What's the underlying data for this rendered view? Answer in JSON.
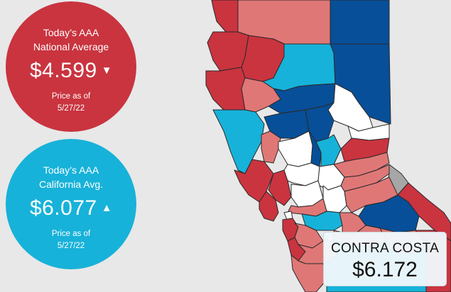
{
  "national": {
    "label_line1": "Today’s AAA",
    "label_line2": "National Average",
    "price": "$4.599",
    "trend": "down",
    "trend_icon": "▼",
    "asof_line1": "Price as of",
    "asof_line2": "5/27/22",
    "color": "#c9343f"
  },
  "california": {
    "label_line1": "Today’s AAA",
    "label_line2": "California Avg.",
    "price": "$6.077",
    "trend": "up",
    "trend_icon": "▲",
    "asof_line1": "Price as of",
    "asof_line2": "5/27/22",
    "color": "#17b2d9"
  },
  "tooltip": {
    "county": "CONTRA COSTA",
    "price": "$6.172"
  },
  "map_colors": {
    "dark_red": "#c9343f",
    "light_red": "#e07777",
    "dark_blue": "#074f98",
    "light_blue": "#17b2d9",
    "white": "#ffffff",
    "gray": "#a6a6a6",
    "background": "#e8e8e8"
  }
}
